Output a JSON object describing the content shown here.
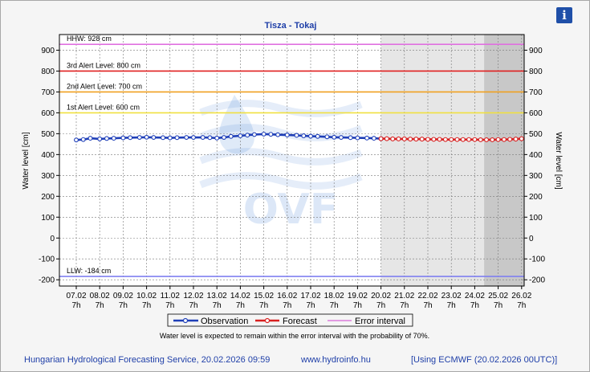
{
  "window": {
    "title": "Tisza - Tokaj",
    "info_icon": "info-icon"
  },
  "chart_data": {
    "type": "line",
    "title": "Tisza - Tokaj",
    "ylabel_left": "Water level [cm]",
    "ylabel_right": "Water level [cm]",
    "ylim": [
      -230,
      975
    ],
    "yticks": [
      -200,
      -100,
      0,
      100,
      200,
      300,
      400,
      500,
      600,
      700,
      800,
      900
    ],
    "x_day_labels": [
      "07.02",
      "08.02",
      "09.02",
      "10.02",
      "11.02",
      "12.02",
      "13.02",
      "14.02",
      "15.02",
      "16.02",
      "17.02",
      "18.02",
      "19.02",
      "20.02",
      "21.02",
      "22.02",
      "23.02",
      "24.02",
      "25.02",
      "26.02"
    ],
    "x_hour_label": "7h",
    "levels": [
      {
        "name": "HHW",
        "label": "HHW: 928 cm",
        "value": 928,
        "color": "#e070e0"
      },
      {
        "name": "3rd-alert",
        "label": "3rd Alert Level: 800 cm",
        "value": 800,
        "color": "#e02020"
      },
      {
        "name": "2nd-alert",
        "label": "2nd Alert Level: 700 cm",
        "value": 700,
        "color": "#f0a020"
      },
      {
        "name": "1st-alert",
        "label": "1st Alert Level: 600 cm",
        "value": 600,
        "color": "#f0e040"
      },
      {
        "name": "LLW",
        "label": "LLW: -184 cm",
        "value": -184,
        "color": "#8080f0"
      }
    ],
    "forecast_shade_start_day": 13,
    "forecast_dark_shade_start_day": 17.4,
    "series": [
      {
        "name": "Observation",
        "color": "#1f3fb8",
        "x": [
          0,
          0.3,
          0.6,
          1,
          1.3,
          1.6,
          2,
          2.3,
          2.7,
          3,
          3.3,
          3.7,
          4,
          4.3,
          4.7,
          5,
          5.4,
          5.7,
          6,
          6.3,
          6.6,
          7,
          7.3,
          7.6,
          8,
          8.3,
          8.6,
          9,
          9.4,
          9.7,
          10,
          10.3,
          10.7,
          11,
          11.3,
          11.7,
          12,
          12.4,
          12.7,
          13
        ],
        "y": [
          470,
          472,
          478,
          475,
          477,
          478,
          480,
          481,
          482,
          483,
          482,
          481,
          480,
          481,
          482,
          482,
          482,
          481,
          479,
          482,
          487,
          490,
          493,
          496,
          498,
          497,
          495,
          494,
          492,
          490,
          488,
          487,
          485,
          483,
          482,
          481,
          480,
          479,
          478,
          476
        ]
      },
      {
        "name": "Forecast",
        "color": "#d82020",
        "x": [
          13,
          13.25,
          13.5,
          13.75,
          14,
          14.25,
          14.5,
          14.75,
          15,
          15.25,
          15.5,
          15.75,
          16,
          16.25,
          16.5,
          16.75,
          17,
          17.25,
          17.5,
          17.75,
          18,
          18.25,
          18.5,
          18.75,
          19
        ],
        "y": [
          476,
          476,
          475,
          475,
          475,
          474,
          474,
          474,
          473,
          473,
          473,
          472,
          472,
          472,
          472,
          472,
          472,
          471,
          471,
          471,
          472,
          472,
          473,
          474,
          476
        ]
      },
      {
        "name": "Error interval",
        "color": "#d040d0",
        "x": [],
        "y": []
      }
    ],
    "legend": {
      "placement": "bottom",
      "entries": [
        "Observation",
        "Forecast",
        "Error interval"
      ]
    },
    "note": "Water level is expected to remain within the error interval with the probability of 70%.",
    "watermark": "OVF"
  },
  "footer": {
    "left": "Hungarian Hydrological Forecasting Service, 20.02.2026 09:59",
    "center": "www.hydroinfo.hu",
    "right": "[Using ECMWF (20.02.2026  00UTC)]"
  }
}
